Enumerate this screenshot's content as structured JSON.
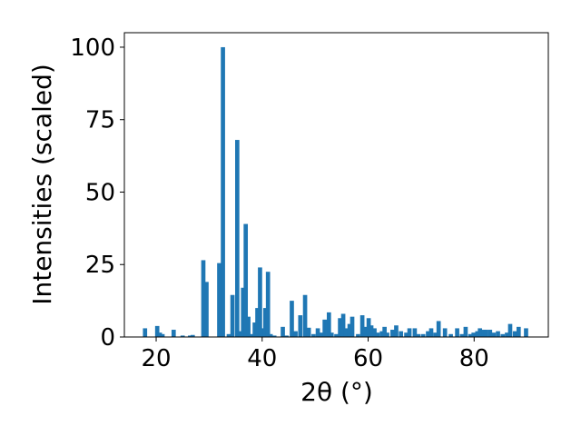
{
  "chart_data": {
    "type": "bar",
    "title": "",
    "xlabel": "2θ (°)",
    "ylabel": "Intensities (scaled)",
    "xlim": [
      14,
      94
    ],
    "ylim": [
      0,
      105
    ],
    "xticks": [
      20,
      40,
      60,
      80
    ],
    "yticks": [
      0,
      25,
      50,
      75,
      100
    ],
    "grid": false,
    "bar_color": "#1f77b4",
    "bar_width": 0.8,
    "x": [
      17.9,
      20.2,
      20.7,
      21.2,
      23.3,
      25.0,
      26.4,
      26.9,
      28.9,
      29.5,
      31.9,
      32.6,
      33.7,
      34.4,
      35.3,
      35.9,
      36.4,
      36.9,
      37.4,
      38.1,
      38.6,
      39.1,
      39.6,
      40.1,
      40.6,
      41.1,
      41.6,
      42.3,
      43.9,
      44.6,
      45.6,
      46.3,
      47.2,
      48.1,
      48.8,
      49.7,
      50.5,
      51.2,
      51.8,
      52.6,
      53.1,
      54.0,
      54.7,
      55.3,
      55.8,
      56.5,
      57.0,
      58.1,
      58.9,
      59.4,
      60.1,
      60.6,
      61.2,
      61.8,
      62.6,
      63.1,
      63.6,
      64.6,
      65.3,
      66.2,
      67.2,
      67.8,
      68.8,
      69.5,
      70.4,
      71.3,
      71.9,
      72.7,
      73.3,
      74.5,
      75.6,
      76.8,
      77.7,
      78.4,
      79.3,
      79.9,
      80.6,
      81.1,
      81.8,
      82.2,
      83.0,
      83.7,
      84.5,
      85.4,
      86.2,
      86.8,
      87.7,
      88.4,
      89.8
    ],
    "values": [
      3,
      3.8,
      1.5,
      1,
      2.5,
      0.5,
      0.5,
      0.7,
      26.5,
      19,
      25.5,
      100,
      1,
      14.5,
      68,
      2,
      17,
      39,
      7,
      1,
      5,
      10,
      24,
      3,
      10,
      22.5,
      1,
      0.5,
      3.5,
      0.5,
      12.5,
      2,
      7.5,
      14.5,
      3.2,
      1,
      3,
      1.5,
      6,
      8.5,
      1.5,
      1,
      6.5,
      8,
      3,
      4.5,
      7,
      1,
      7.5,
      3.5,
      6.5,
      4,
      3,
      1.5,
      2,
      3.5,
      1.5,
      2.5,
      4,
      2,
      1.5,
      3,
      3,
      1,
      1,
      2,
      3,
      1.5,
      5.5,
      3,
      1,
      3,
      1,
      3.5,
      1,
      1.5,
      2,
      3,
      2.5,
      2.5,
      2.5,
      1.5,
      2,
      1,
      1.5,
      4.5,
      2,
      3.5,
      3
    ]
  }
}
